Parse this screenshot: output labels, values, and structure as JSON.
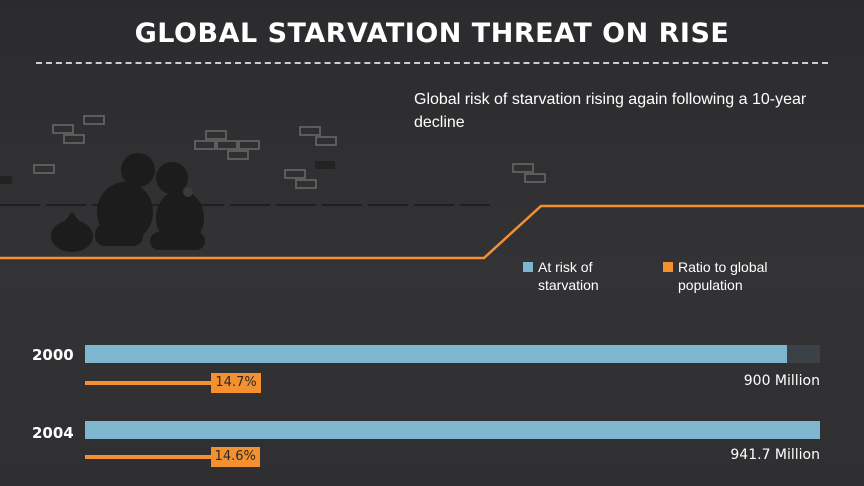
{
  "header": {
    "title": "GLOBAL STARVATION THREAT ON RISE",
    "subtitle": "Global risk of starvation rising again following a 10-year decline"
  },
  "colors": {
    "at_risk": "#7fb6cf",
    "ratio": "#f39130",
    "track": "#3b4146",
    "background": "#2f2f31"
  },
  "legend": [
    {
      "label": "At risk of starvation",
      "color": "#7fb6cf"
    },
    {
      "label": "Ratio to global population",
      "color": "#f39130"
    }
  ],
  "chart_data": {
    "type": "bar",
    "title": "GLOBAL STARVATION THREAT ON RISE",
    "categories": [
      "2000",
      "2004"
    ],
    "series": [
      {
        "name": "At risk of starvation",
        "values": [
          900,
          941.7
        ],
        "unit": "Million"
      },
      {
        "name": "Ratio to global population",
        "values": [
          14.7,
          14.6
        ],
        "unit": "%"
      }
    ],
    "value_labels": [
      "900 Million",
      "941.7 Million"
    ],
    "ratio_labels": [
      "14.7%",
      "14.6%"
    ],
    "xlim": [
      0,
      941.7
    ],
    "orientation": "horizontal",
    "legend_position": "top-right"
  }
}
